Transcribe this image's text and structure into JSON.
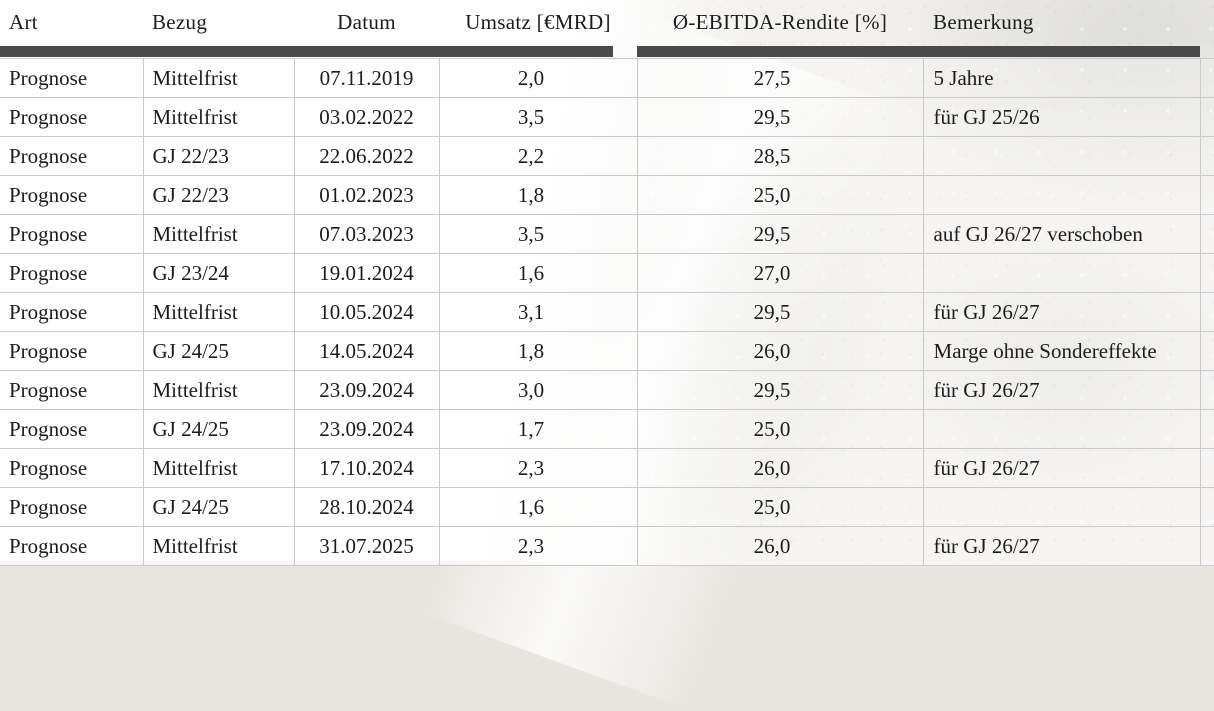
{
  "table": {
    "columns": [
      {
        "key": "art",
        "label": "Art"
      },
      {
        "key": "bezug",
        "label": "Bezug"
      },
      {
        "key": "datum",
        "label": "Datum"
      },
      {
        "key": "umsatz",
        "label": "Umsatz [€MRD]"
      },
      {
        "key": "ebitda",
        "label": "Ø-EBITDA-Rendite [%]"
      },
      {
        "key": "bemerkung",
        "label": "Bemerkung"
      }
    ],
    "rows": [
      [
        "Prognose",
        "Mittelfrist",
        "07.11.2019",
        "2,0",
        "27,5",
        "5 Jahre"
      ],
      [
        "Prognose",
        "Mittelfrist",
        "03.02.2022",
        "3,5",
        "29,5",
        "für GJ 25/26"
      ],
      [
        "Prognose",
        "GJ 22/23",
        "22.06.2022",
        "2,2",
        "28,5",
        ""
      ],
      [
        "Prognose",
        "GJ 22/23",
        "01.02.2023",
        "1,8",
        "25,0",
        ""
      ],
      [
        "Prognose",
        "Mittelfrist",
        "07.03.2023",
        "3,5",
        "29,5",
        "auf GJ 26/27 verschoben"
      ],
      [
        "Prognose",
        "GJ 23/24",
        "19.01.2024",
        "1,6",
        "27,0",
        ""
      ],
      [
        "Prognose",
        "Mittelfrist",
        "10.05.2024",
        "3,1",
        "29,5",
        "für GJ 26/27"
      ],
      [
        "Prognose",
        "GJ 24/25",
        "14.05.2024",
        "1,8",
        "26,0",
        "Marge ohne Sondereffekte"
      ],
      [
        "Prognose",
        "Mittelfrist",
        "23.09.2024",
        "3,0",
        "29,5",
        "für GJ 26/27"
      ],
      [
        "Prognose",
        "GJ 24/25",
        "23.09.2024",
        "1,7",
        "25,0",
        ""
      ],
      [
        "Prognose",
        "Mittelfrist",
        "17.10.2024",
        "2,3",
        "26,0",
        "für GJ 26/27"
      ],
      [
        "Prognose",
        "GJ 24/25",
        "28.10.2024",
        "1,6",
        "25,0",
        ""
      ],
      [
        "Prognose",
        "Mittelfrist",
        "31.07.2025",
        "2,3",
        "26,0",
        "für GJ 26/27"
      ]
    ]
  },
  "colors": {
    "separator_bar": "#4a4a4a",
    "row_border": "#c9c9c9",
    "text": "#1c1c1c"
  }
}
